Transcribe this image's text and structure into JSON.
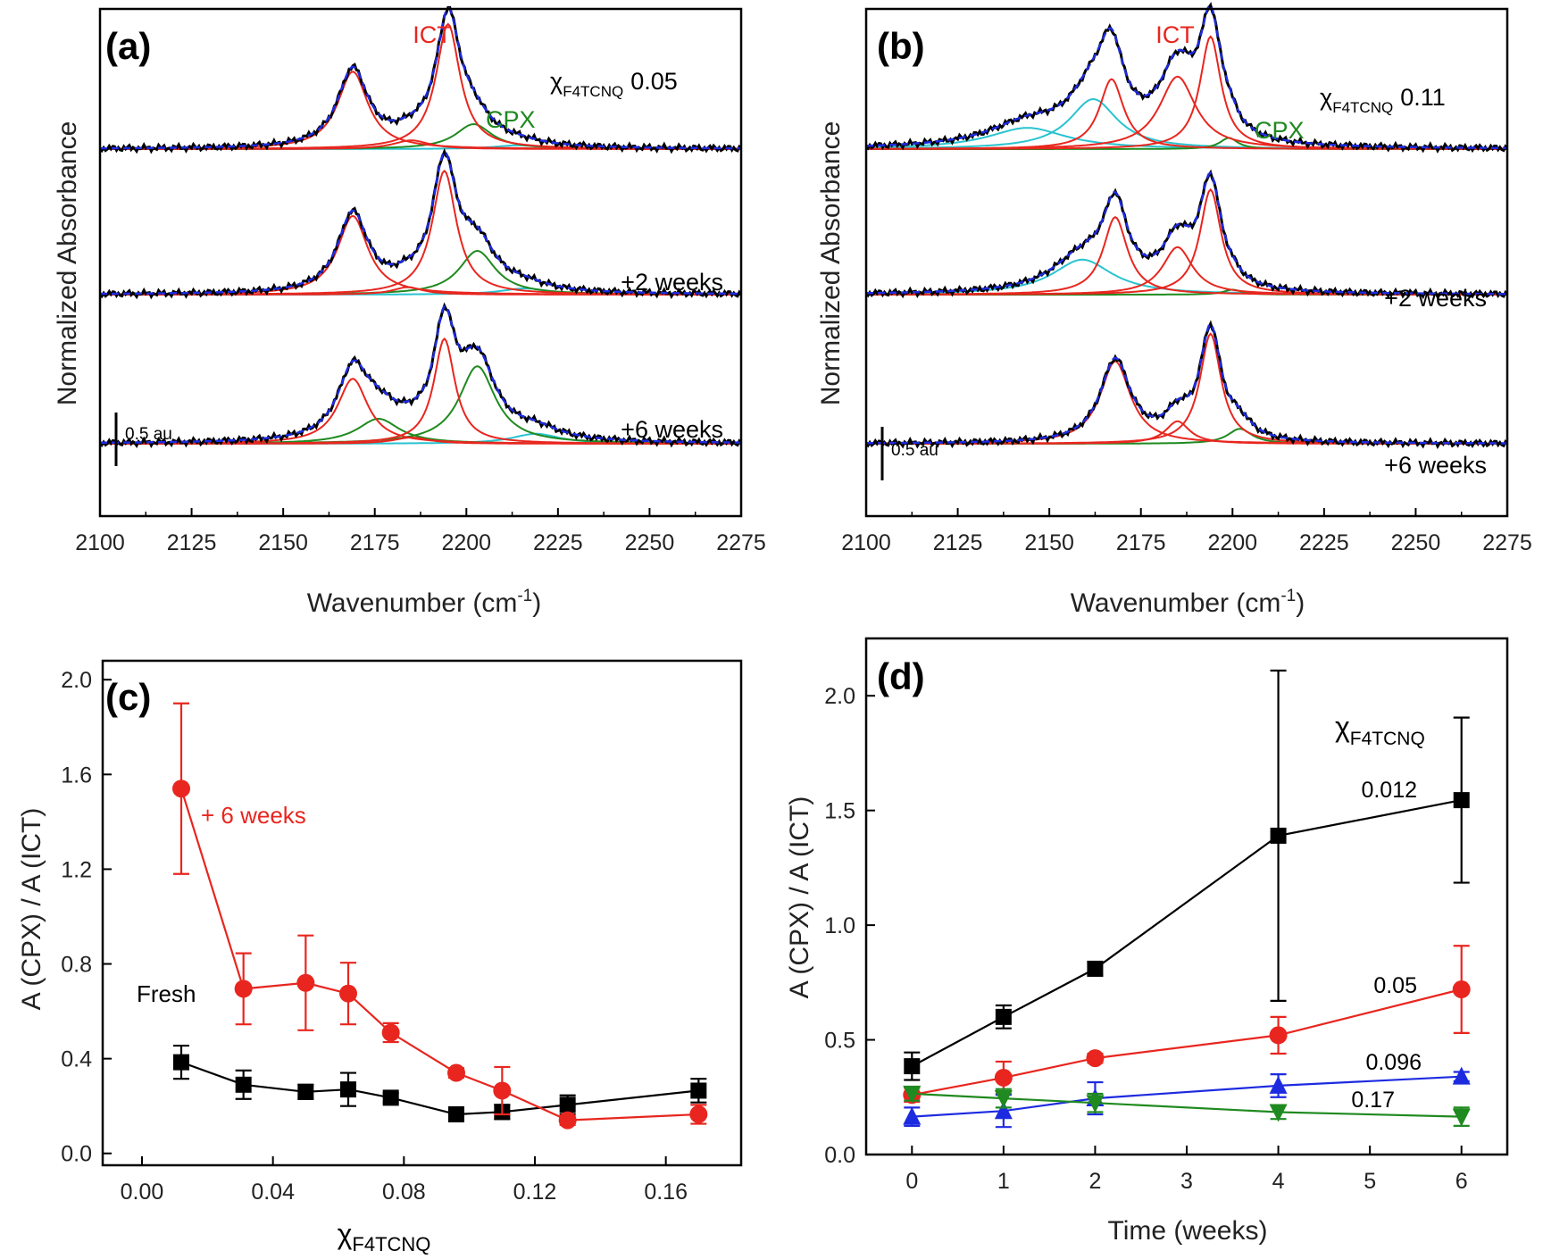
{
  "colors": {
    "black": "#000000",
    "red": "#e8261f",
    "green": "#1f8a1f",
    "cyan": "#29c3cf",
    "blue": "#1d2be0"
  },
  "chart_data": [
    {
      "id": "a",
      "type": "line",
      "panel_label": "(a)",
      "xlabel_main": "Wavenumber (cm",
      "xlabel_sup": "-1",
      "xlabel_end": ")",
      "ylabel": "Normalized Absorbance",
      "xlim": [
        2100,
        2275
      ],
      "xticks": [
        2100,
        2125,
        2150,
        2175,
        2200,
        2225,
        2250,
        2275
      ],
      "scale_bar_label": "0.5 au",
      "peak_labels": {
        "ict": "ICT",
        "cpx": "CPX"
      },
      "chi_symbol": "χ",
      "chi_sub": "F4TCNQ",
      "chi_value": "0.05",
      "traces": [
        {
          "label": "",
          "offset": 2.0,
          "peaks": [
            [
              2169,
              0.62,
              5
            ],
            [
              2185,
              0.07,
              6
            ],
            [
              2195,
              1.0,
              4
            ],
            [
              2202,
              0.2,
              6
            ],
            [
              2214,
              0.03,
              8
            ]
          ],
          "red": [
            0,
            1,
            2
          ],
          "green": [
            3
          ],
          "cyan": [
            4
          ]
        },
        {
          "label": "+2 weeks",
          "offset": 1.0,
          "peaks": [
            [
              2169,
              0.63,
              5
            ],
            [
              2184,
              0.06,
              5
            ],
            [
              2194,
              0.99,
              4
            ],
            [
              2203,
              0.35,
              6
            ],
            [
              2216,
              0.05,
              8
            ]
          ],
          "red": [
            0,
            1,
            2
          ],
          "green": [
            3
          ],
          "cyan": [
            4
          ]
        },
        {
          "label": "+6 weeks",
          "offset": 0.0,
          "peaks": [
            [
              2169,
              0.52,
              5
            ],
            [
              2176,
              0.2,
              7
            ],
            [
              2185,
              0.05,
              6
            ],
            [
              2194,
              0.84,
              3.5
            ],
            [
              2203,
              0.62,
              6
            ],
            [
              2219,
              0.08,
              8
            ]
          ],
          "red": [
            0,
            2,
            3
          ],
          "green": [
            1,
            4
          ],
          "cyan": [
            5
          ]
        }
      ]
    },
    {
      "id": "b",
      "type": "line",
      "panel_label": "(b)",
      "xlabel_main": "Wavenumber (cm",
      "xlabel_sup": "-1",
      "xlabel_end": ")",
      "ylabel": "Normalized Absorbance",
      "xlim": [
        2100,
        2275
      ],
      "xticks": [
        2100,
        2125,
        2150,
        2175,
        2200,
        2225,
        2250,
        2275
      ],
      "scale_bar_label": "0.5 au",
      "peak_labels": {
        "ict": "ICT",
        "cpx": "CPX"
      },
      "chi_symbol": "χ",
      "chi_sub": "F4TCNQ",
      "chi_value": "0.11",
      "traces": [
        {
          "label": "",
          "offset": 2.0,
          "peaks": [
            [
              2144,
              0.17,
              13
            ],
            [
              2162,
              0.4,
              8
            ],
            [
              2167,
              0.56,
              4
            ],
            [
              2185,
              0.58,
              6
            ],
            [
              2194,
              0.9,
              3.5
            ],
            [
              2199,
              0.09,
              3
            ]
          ],
          "red": [
            2,
            3,
            4
          ],
          "green": [
            5
          ],
          "cyan": [
            0,
            1
          ]
        },
        {
          "label": "+2 weeks",
          "offset": 1.0,
          "peaks": [
            [
              2159,
              0.28,
              10
            ],
            [
              2168,
              0.62,
              4
            ],
            [
              2185,
              0.38,
              5
            ],
            [
              2194,
              0.84,
              3.5
            ],
            [
              2200,
              0.04,
              3
            ]
          ],
          "red": [
            1,
            2,
            3
          ],
          "green": [
            4
          ],
          "cyan": [
            0
          ]
        },
        {
          "label": "+6 weeks",
          "offset": 0.0,
          "peaks": [
            [
              2168,
              0.66,
              5
            ],
            [
              2185,
              0.18,
              4
            ],
            [
              2194,
              0.88,
              3.5
            ],
            [
              2202,
              0.12,
              4
            ]
          ],
          "red": [
            0,
            1,
            2
          ],
          "green": [
            3
          ],
          "cyan": []
        }
      ]
    },
    {
      "id": "c",
      "type": "scatter",
      "panel_label": "(c)",
      "xlabel_symbol": "χ",
      "xlabel_sub": "F4TCNQ",
      "ylabel": "A (CPX) / A (ICT)",
      "xlim": [
        -0.012,
        0.183
      ],
      "ylim": [
        -0.05,
        2.08
      ],
      "xticks": [
        0.0,
        0.04,
        0.08,
        0.12,
        0.16
      ],
      "xticklabels": [
        "0.00",
        "0.04",
        "0.08",
        "0.12",
        "0.16"
      ],
      "yticks": [
        0.0,
        0.4,
        0.8,
        1.2,
        1.6,
        2.0
      ],
      "yticklabels": [
        "0.0",
        "0.4",
        "0.8",
        "1.2",
        "1.6",
        "2.0"
      ],
      "series": [
        {
          "name": "Fresh",
          "color": "#000000",
          "marker": "square",
          "x": [
            0.012,
            0.031,
            0.05,
            0.063,
            0.076,
            0.096,
            0.11,
            0.13,
            0.17
          ],
          "y": [
            0.385,
            0.29,
            0.26,
            0.27,
            0.235,
            0.165,
            0.175,
            0.205,
            0.265
          ],
          "err": [
            0.07,
            0.06,
            0.03,
            0.07,
            0.02,
            0.02,
            0.03,
            0.04,
            0.05
          ]
        },
        {
          "name": "+ 6 weeks",
          "color": "#e8261f",
          "marker": "circle",
          "x": [
            0.012,
            0.031,
            0.05,
            0.063,
            0.076,
            0.096,
            0.11,
            0.13,
            0.17
          ],
          "y": [
            1.54,
            0.695,
            0.72,
            0.675,
            0.51,
            0.34,
            0.265,
            0.14,
            0.165
          ],
          "err": [
            0.36,
            0.15,
            0.2,
            0.13,
            0.04,
            0.02,
            0.1,
            0.02,
            0.04
          ]
        }
      ]
    },
    {
      "id": "d",
      "type": "scatter",
      "panel_label": "(d)",
      "xlabel": "Time (weeks)",
      "ylabel": "A (CPX) / A (ICT)",
      "legend_symbol": "χ",
      "legend_sub": "F4TCNQ",
      "xlim": [
        -0.5,
        6.5
      ],
      "ylim": [
        0,
        2.25
      ],
      "xticks": [
        0,
        1,
        2,
        3,
        4,
        5,
        6
      ],
      "xticklabels": [
        "0",
        "1",
        "2",
        "3",
        "4",
        "5",
        "6"
      ],
      "yticks": [
        0.0,
        0.5,
        1.0,
        1.5,
        2.0
      ],
      "yticklabels": [
        "0.0",
        "0.5",
        "1.0",
        "1.5",
        "2.0"
      ],
      "series": [
        {
          "name": "0.012",
          "color": "#000000",
          "marker": "square",
          "x": [
            0,
            1,
            2,
            4,
            6
          ],
          "y": [
            0.385,
            0.6,
            0.81,
            1.39,
            1.545
          ],
          "err": [
            0.06,
            0.05,
            0.03,
            0.72,
            0.36
          ]
        },
        {
          "name": "0.05",
          "color": "#e8261f",
          "marker": "circle",
          "x": [
            0,
            1,
            2,
            4,
            6
          ],
          "y": [
            0.26,
            0.335,
            0.42,
            0.52,
            0.72
          ],
          "err": [
            0.03,
            0.07,
            0.02,
            0.08,
            0.19
          ]
        },
        {
          "name": "0.096",
          "color": "#1d2be0",
          "marker": "triangle-up",
          "x": [
            0,
            1,
            2,
            4,
            6
          ],
          "y": [
            0.165,
            0.19,
            0.245,
            0.3,
            0.34
          ],
          "err": [
            0.04,
            0.07,
            0.07,
            0.05,
            0.02
          ]
        },
        {
          "name": "0.17",
          "color": "#1f8a1f",
          "marker": "triangle-down",
          "x": [
            0,
            1,
            2,
            4,
            6
          ],
          "y": [
            0.265,
            0.245,
            0.225,
            0.185,
            0.165
          ],
          "err": [
            0.03,
            0.04,
            0.04,
            0.03,
            0.04
          ]
        }
      ]
    }
  ]
}
